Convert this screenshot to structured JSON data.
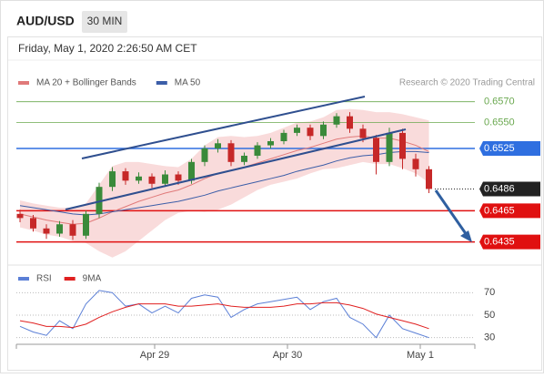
{
  "header": {
    "symbol": "AUD/USD",
    "timeframe": "30 MIN",
    "date": "Friday, May 1, 2020 2:26:50 AM CET"
  },
  "chart_data": [
    {
      "type": "candlestick",
      "credit": "Research © 2020 Trading Central",
      "ylim": [
        0.6418,
        0.6582
      ],
      "up_color": "#3a8a3a",
      "down_color": "#c62828",
      "open": [
        0.6462,
        0.6458,
        0.6448,
        0.6443,
        0.6452,
        0.6441,
        0.6462,
        0.6488,
        0.6503,
        0.6494,
        0.6498,
        0.6491,
        0.65,
        0.6494,
        0.6512,
        0.6525,
        0.653,
        0.6512,
        0.6518,
        0.6528,
        0.6532,
        0.654,
        0.6545,
        0.6537,
        0.6548,
        0.6556,
        0.6544,
        0.6535,
        0.6512,
        0.654,
        0.6515,
        0.6505
      ],
      "high": [
        0.6466,
        0.6461,
        0.6452,
        0.6455,
        0.6456,
        0.6465,
        0.6492,
        0.6507,
        0.6506,
        0.6502,
        0.6501,
        0.6504,
        0.6503,
        0.6515,
        0.6528,
        0.6534,
        0.6533,
        0.6521,
        0.6531,
        0.6535,
        0.6543,
        0.6548,
        0.6548,
        0.6551,
        0.6559,
        0.656,
        0.6548,
        0.6538,
        0.6545,
        0.6544,
        0.652,
        0.6508
      ],
      "low": [
        0.6454,
        0.6445,
        0.6438,
        0.644,
        0.6437,
        0.6438,
        0.6458,
        0.6484,
        0.649,
        0.6491,
        0.6487,
        0.6488,
        0.649,
        0.6491,
        0.6508,
        0.6521,
        0.6508,
        0.6509,
        0.6515,
        0.6525,
        0.6529,
        0.6537,
        0.6533,
        0.6534,
        0.6545,
        0.654,
        0.6531,
        0.65,
        0.6508,
        0.6505,
        0.6498,
        0.6482
      ],
      "close": [
        0.6458,
        0.6448,
        0.6443,
        0.6452,
        0.6441,
        0.6462,
        0.6488,
        0.6503,
        0.6494,
        0.6498,
        0.6491,
        0.65,
        0.6494,
        0.6512,
        0.6525,
        0.653,
        0.6512,
        0.6518,
        0.6528,
        0.6532,
        0.654,
        0.6545,
        0.6537,
        0.6548,
        0.6556,
        0.6544,
        0.6535,
        0.6512,
        0.654,
        0.6515,
        0.6505,
        0.6486
      ],
      "series": [
        {
          "name": "MA 20 + Bollinger Bands",
          "color": "#e07a7a",
          "band_color": "#f6cccc",
          "values": [
            0.6462,
            0.6459,
            0.6456,
            0.6454,
            0.6452,
            0.6453,
            0.6458,
            0.6464,
            0.6469,
            0.6474,
            0.6478,
            0.6482,
            0.6485,
            0.649,
            0.6496,
            0.6501,
            0.6504,
            0.6507,
            0.6511,
            0.6515,
            0.6519,
            0.6523,
            0.6526,
            0.653,
            0.6534,
            0.6536,
            0.6537,
            0.6535,
            0.6535,
            0.6532,
            0.6528,
            0.6522
          ],
          "upper": [
            0.6475,
            0.6472,
            0.647,
            0.6468,
            0.6468,
            0.6472,
            0.649,
            0.6508,
            0.6512,
            0.6512,
            0.651,
            0.6508,
            0.6507,
            0.6515,
            0.6528,
            0.6536,
            0.6537,
            0.6536,
            0.6537,
            0.654,
            0.6545,
            0.655,
            0.6551,
            0.6555,
            0.6562,
            0.6563,
            0.6562,
            0.656,
            0.656,
            0.6558,
            0.6555,
            0.6552
          ],
          "lower": [
            0.6449,
            0.6446,
            0.6442,
            0.644,
            0.6436,
            0.6434,
            0.6426,
            0.642,
            0.6426,
            0.6436,
            0.6446,
            0.6456,
            0.6463,
            0.6465,
            0.6464,
            0.6466,
            0.6471,
            0.6478,
            0.6485,
            0.649,
            0.6493,
            0.6496,
            0.6501,
            0.6505,
            0.6506,
            0.6509,
            0.6512,
            0.651,
            0.651,
            0.6506,
            0.6501,
            0.6492
          ]
        },
        {
          "name": "MA 50",
          "color": "#3c5ea8",
          "values": [
            0.647,
            0.6468,
            0.6466,
            0.6464,
            0.6462,
            0.6461,
            0.6462,
            0.6464,
            0.6466,
            0.6468,
            0.647,
            0.6472,
            0.6474,
            0.6477,
            0.648,
            0.6484,
            0.6487,
            0.649,
            0.6493,
            0.6496,
            0.6499,
            0.6503,
            0.6506,
            0.6509,
            0.6513,
            0.6516,
            0.6518,
            0.6519,
            0.6521,
            0.6522,
            0.6522,
            0.6521
          ]
        }
      ],
      "levels": [
        {
          "value": 0.657,
          "label": "0.6570",
          "color": "#6aa84f",
          "kind": "plain"
        },
        {
          "value": 0.655,
          "label": "0.6550",
          "color": "#6aa84f",
          "kind": "plain"
        },
        {
          "value": 0.6525,
          "label": "0.6525",
          "color": "#2f6fe0",
          "kind": "box"
        },
        {
          "value": 0.6486,
          "label": "0.6486",
          "color": "#222222",
          "kind": "dotted"
        },
        {
          "value": 0.6465,
          "label": "0.6465",
          "color": "#e01010",
          "kind": "box"
        },
        {
          "value": 0.6435,
          "label": "0.6435",
          "color": "#e01010",
          "kind": "box"
        }
      ]
    },
    {
      "type": "line",
      "ylim": [
        20,
        80
      ],
      "yticks": [
        70,
        50,
        30
      ],
      "xticks": [
        "Apr 29",
        "Apr 30",
        "May 1"
      ],
      "series": [
        {
          "name": "RSI",
          "color": "#5b7fd6",
          "values": [
            40,
            35,
            32,
            45,
            38,
            60,
            72,
            70,
            58,
            60,
            52,
            58,
            52,
            65,
            68,
            66,
            48,
            55,
            60,
            62,
            64,
            66,
            55,
            62,
            65,
            48,
            42,
            30,
            50,
            38,
            34,
            30
          ]
        },
        {
          "name": "9MA",
          "color": "#e02020",
          "values": [
            45,
            43,
            40,
            40,
            39,
            42,
            48,
            53,
            57,
            60,
            60,
            60,
            58,
            58,
            59,
            60,
            58,
            57,
            57,
            57,
            58,
            60,
            60,
            61,
            61,
            59,
            56,
            51,
            48,
            45,
            42,
            38
          ]
        }
      ]
    }
  ]
}
